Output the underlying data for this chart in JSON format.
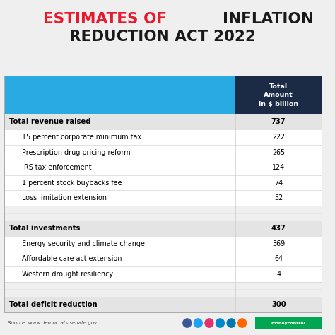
{
  "title_line1_red": "ESTIMATES OF ",
  "title_line1_black": "INFLATION",
  "title_line2": "REDUCTION ACT 2022",
  "header_col2": "Total\nAmount\nin $ billion",
  "rows": [
    {
      "label": "Total revenue raised",
      "value": "737",
      "bold": true,
      "indent": false,
      "spacer": false
    },
    {
      "label": "15 percent corporate minimum tax",
      "value": "222",
      "bold": false,
      "indent": true,
      "spacer": false
    },
    {
      "label": "Prescription drug pricing reform",
      "value": "265",
      "bold": false,
      "indent": true,
      "spacer": false
    },
    {
      "label": "IRS tax enforcement",
      "value": "124",
      "bold": false,
      "indent": true,
      "spacer": false
    },
    {
      "label": "1 percent stock buybacks fee",
      "value": "74",
      "bold": false,
      "indent": true,
      "spacer": false
    },
    {
      "label": "Loss limitation extension",
      "value": "52",
      "bold": false,
      "indent": true,
      "spacer": false
    },
    {
      "label": "",
      "value": "",
      "bold": false,
      "indent": false,
      "spacer": true
    },
    {
      "label": "Total investments",
      "value": "437",
      "bold": true,
      "indent": false,
      "spacer": false
    },
    {
      "label": "Energy security and climate change",
      "value": "369",
      "bold": false,
      "indent": true,
      "spacer": false
    },
    {
      "label": "Affordable care act extension",
      "value": "64",
      "bold": false,
      "indent": true,
      "spacer": false
    },
    {
      "label": "Western drought resiliency",
      "value": "4",
      "bold": false,
      "indent": true,
      "spacer": false
    },
    {
      "label": "",
      "value": "",
      "bold": false,
      "indent": false,
      "spacer": true
    },
    {
      "label": "Total deficit reduction",
      "value": "300",
      "bold": true,
      "indent": false,
      "spacer": false
    }
  ],
  "bg_color": "#efefef",
  "header_blue": "#29ABE2",
  "header_dark": "#1b2a45",
  "row_white": "#ffffff",
  "row_light": "#f5f5f5",
  "row_bold_bg": "#e4e4e4",
  "bold_color": "#000000",
  "source_text": "Source: www.democrats.senate.gov",
  "title_red": "#e8192c",
  "title_black": "#1a1a1a",
  "divider_color": "#cccccc",
  "icon_colors": [
    "#3b5998",
    "#1da1f2",
    "#e1306c",
    "#0088cc",
    "#0077b5",
    "#ff6600"
  ]
}
